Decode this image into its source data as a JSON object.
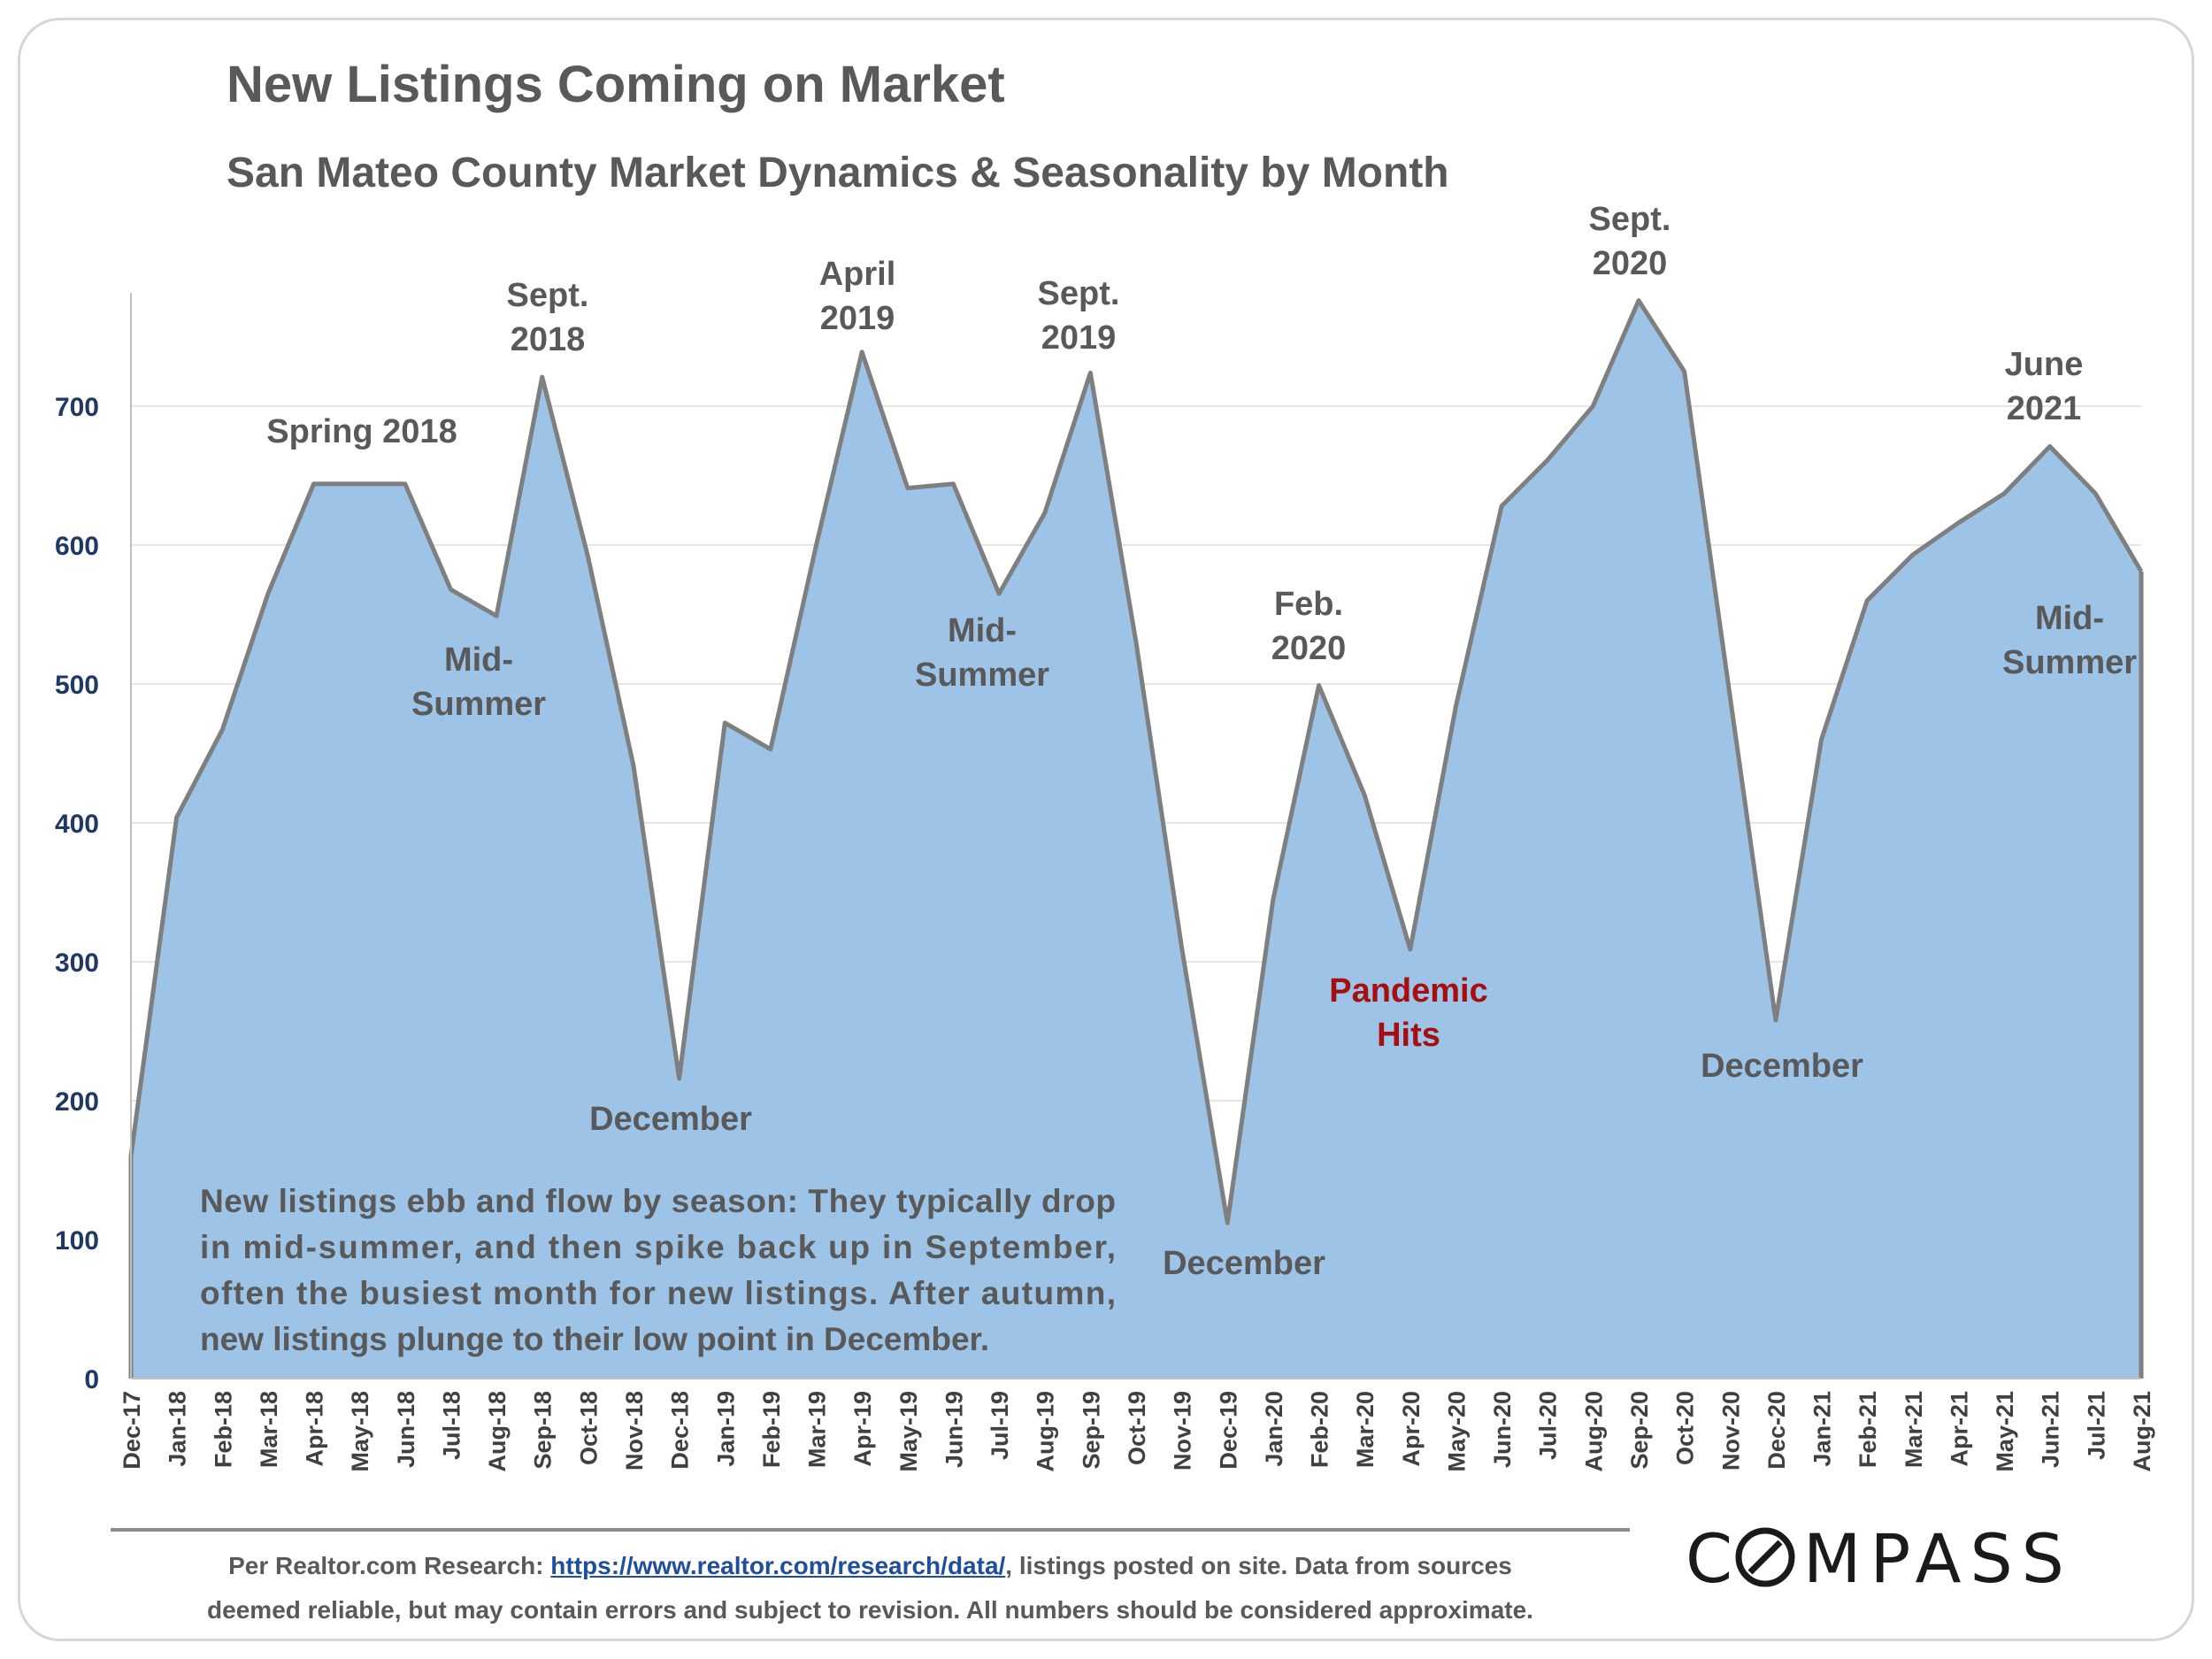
{
  "header": {
    "title": "New Listings Coming on Market",
    "subtitle": "San Mateo County Market Dynamics & Seasonality by Month"
  },
  "chart_data": {
    "type": "area",
    "title": "New Listings Coming on Market",
    "subtitle": "San Mateo County Market Dynamics & Seasonality by Month",
    "xlabel": "",
    "ylabel": "",
    "ylim": [
      0,
      780
    ],
    "yticks": [
      0,
      100,
      200,
      300,
      400,
      500,
      600,
      700
    ],
    "grid": true,
    "legend": "none",
    "colors": {
      "fill": "#9dc3e6",
      "line": "#7f7f7f"
    },
    "categories": [
      "Dec-17",
      "Jan-18",
      "Feb-18",
      "Mar-18",
      "Apr-18",
      "May-18",
      "Jun-18",
      "Jul-18",
      "Aug-18",
      "Sep-18",
      "Oct-18",
      "Nov-18",
      "Dec-18",
      "Jan-19",
      "Feb-19",
      "Mar-19",
      "Apr-19",
      "May-19",
      "Jun-19",
      "Jul-19",
      "Aug-19",
      "Sep-19",
      "Oct-19",
      "Nov-19",
      "Dec-19",
      "Jan-20",
      "Feb-20",
      "Mar-20",
      "Apr-20",
      "May-20",
      "Jun-20",
      "Jul-20",
      "Aug-20",
      "Sep-20",
      "Oct-20",
      "Nov-20",
      "Dec-20",
      "Jan-21",
      "Feb-21",
      "Mar-21",
      "Apr-21",
      "May-21",
      "Jun-21",
      "Jul-21",
      "Aug-21"
    ],
    "series": [
      {
        "values": [
          160,
          404,
          467,
          565,
          644,
          644,
          644,
          568,
          549,
          721,
          592,
          441,
          216,
          472,
          453,
          600,
          739,
          641,
          644,
          565,
          623,
          724,
          530,
          310,
          112,
          345,
          499,
          420,
          309,
          484,
          628,
          661,
          700,
          776,
          725,
          491,
          258,
          460,
          560,
          593,
          616,
          637,
          671,
          637,
          581
        ]
      }
    ],
    "annotations": [
      {
        "lines": [
          "Spring 2018"
        ],
        "color": "#595959"
      },
      {
        "lines": [
          "Sept.",
          "2018"
        ],
        "color": "#595959"
      },
      {
        "lines": [
          "Mid-",
          "Summer"
        ],
        "color": "#595959"
      },
      {
        "lines": [
          "December"
        ],
        "color": "#595959"
      },
      {
        "lines": [
          "April",
          "2019"
        ],
        "color": "#595959"
      },
      {
        "lines": [
          "Sept.",
          "2019"
        ],
        "color": "#595959"
      },
      {
        "lines": [
          "Mid-",
          "Summer"
        ],
        "color": "#595959"
      },
      {
        "lines": [
          "December"
        ],
        "color": "#595959"
      },
      {
        "lines": [
          "Feb.",
          "2020"
        ],
        "color": "#595959"
      },
      {
        "lines": [
          "Pandemic",
          "Hits"
        ],
        "color": "#a50f0f"
      },
      {
        "lines": [
          "Sept.",
          "2020"
        ],
        "color": "#595959"
      },
      {
        "lines": [
          "December"
        ],
        "color": "#595959"
      },
      {
        "lines": [
          "June",
          "2021"
        ],
        "color": "#595959"
      },
      {
        "lines": [
          "Mid-",
          "Summer"
        ],
        "color": "#595959"
      }
    ],
    "note_lines": [
      "New listings ebb and flow by season: They typically drop",
      "in mid-summer, and then spike back up in September,",
      "often the busiest month for new listings.  After autumn,",
      "new listings plunge to their low point in December."
    ]
  },
  "footer": {
    "prefix": "Per Realtor.com Research:  ",
    "link": "https://www.realtor.com/research/data/",
    "suffix": ", listings posted on site. Data from sources",
    "line2": "deemed reliable, but may contain errors and subject to revision. All numbers should be considered approximate."
  },
  "logo": {
    "text": "COMPASS"
  }
}
